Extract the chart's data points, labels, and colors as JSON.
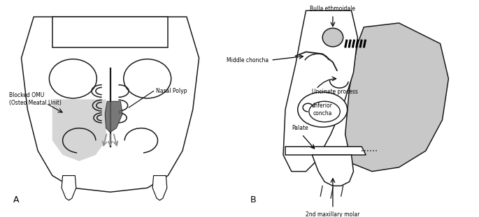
{
  "title": "",
  "background_color": "#ffffff",
  "label_A": "A",
  "label_B": "B",
  "text_blocked_OMU": "Blocked OMU\n(Osteo Meatal Unit)",
  "text_nasal_polyp": "Nasal Polyp",
  "text_bulla": "Bulla ethmoidale",
  "text_middle_choncha": "Middle choncha",
  "text_uncinate": "Uncinate process",
  "text_inferior_concha": "Inferior\nconcha",
  "text_palate": "Palate",
  "text_molar": "2nd maxillary molar",
  "gray_light": "#c8c8c8",
  "gray_medium": "#909090",
  "gray_dark": "#606060",
  "line_color": "#1a1a1a",
  "fig_width": 6.85,
  "fig_height": 3.11,
  "dpi": 100
}
